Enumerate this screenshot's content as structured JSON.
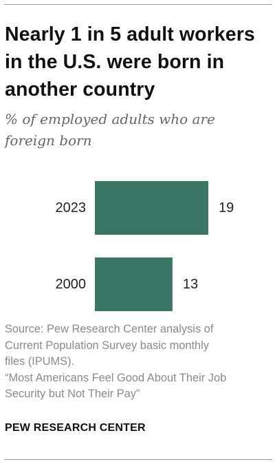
{
  "title": "Nearly 1 in 5 adult workers in the U.S. were born in another country",
  "subtitle": "% of employed adults who are foreign born",
  "chart_data": {
    "type": "bar",
    "orientation": "horizontal",
    "categories": [
      "2023",
      "2000"
    ],
    "values": [
      19,
      13
    ],
    "title": "Nearly 1 in 5 adult workers in the U.S. were born in another country",
    "subtitle": "% of employed adults who are foreign born",
    "xlim": [
      0,
      19
    ],
    "grid": false,
    "data_labels": true,
    "bar_color": "#3a7566"
  },
  "source_lines": [
    "Source: Pew Research Center analysis of",
    "Current Population Survey basic monthly",
    "files (IPUMS).",
    "“Most Americans Feel Good About Their Job",
    "Security but Not Their Pay”"
  ],
  "logo": "PEW RESEARCH CENTER"
}
